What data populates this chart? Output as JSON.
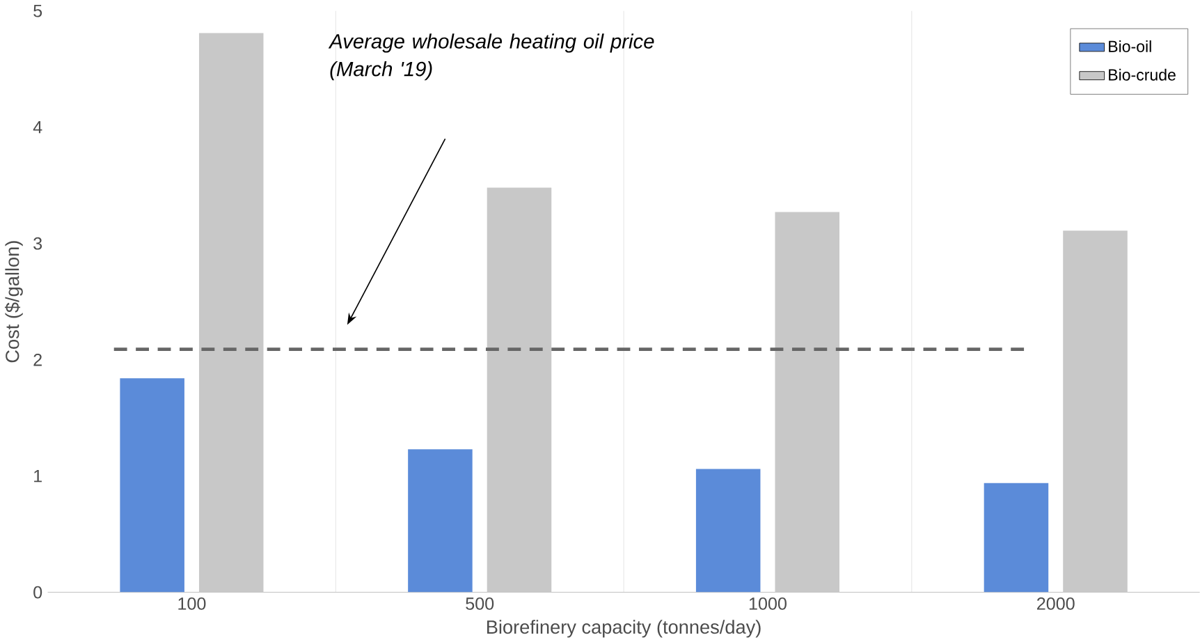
{
  "chart_data": {
    "type": "bar",
    "xlabel": "Biorefinery capacity (tonnes/day)",
    "ylabel": "Cost ($/gallon)",
    "categories": [
      "100",
      "500",
      "1000",
      "2000"
    ],
    "series": [
      {
        "name": "Bio-oil",
        "color": "#5b8bd9",
        "values": [
          1.84,
          1.23,
          1.06,
          0.94
        ]
      },
      {
        "name": "Bio-crude",
        "color": "#c8c8c8",
        "values": [
          4.81,
          3.48,
          3.27,
          3.11
        ]
      }
    ],
    "ylim": [
      0,
      5
    ],
    "yticks": [
      0,
      1,
      2,
      3,
      4,
      5
    ],
    "grid": "x",
    "legend": "top right",
    "annotations": [
      "Average wholesale heating oil price (March  '19)"
    ],
    "ref_lines": [
      {
        "axis": "y",
        "value": 2.09,
        "color": "#666666",
        "line_style": "dashed"
      }
    ]
  }
}
